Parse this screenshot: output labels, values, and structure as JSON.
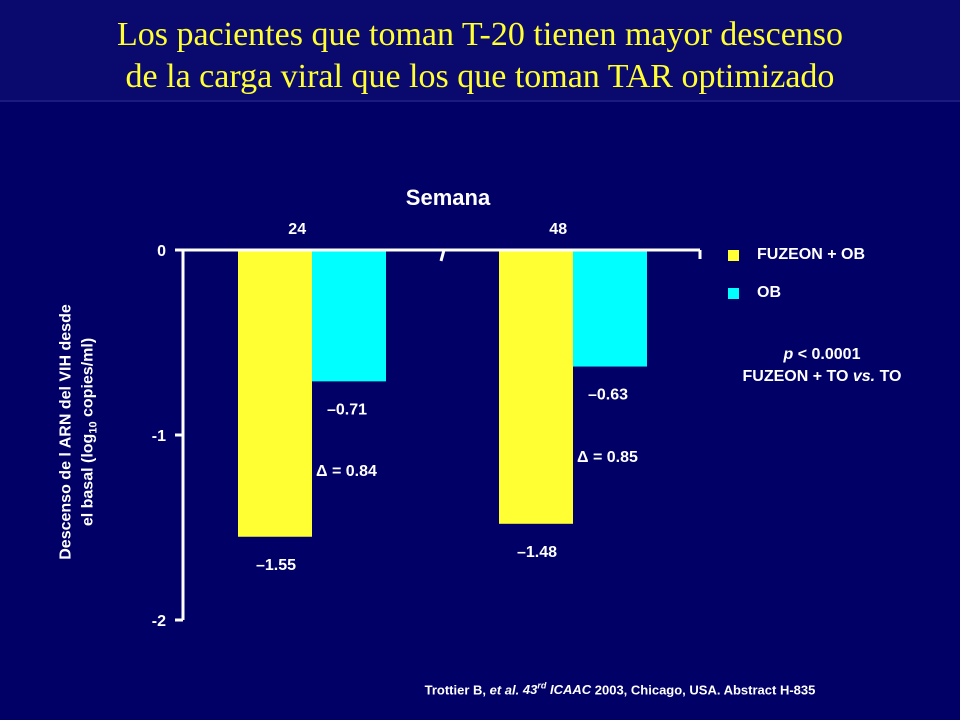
{
  "slide": {
    "title_line1": "Los pacientes que toman T-20 tienen mayor descenso",
    "title_line2": "de la carga viral que los que toman TAR optimizado",
    "p_value": "p < 0.0001",
    "p_comparison": "FUZEON + TO vs. TO",
    "citation": "Trottier B, et al. 43rd ICAAC 2003, Chicago, USA. Abstract H-835",
    "ylabel_line1": "Descenso de l ARN del VIH desde",
    "ylabel_line2": "el basal (log10 copies/ml)",
    "colors": {
      "background": "#000066",
      "title": "#FFFF33",
      "text": "#FFFFFF"
    }
  },
  "chart_data": {
    "type": "bar",
    "title": "Semana",
    "categories": [
      "24",
      "48"
    ],
    "series": [
      {
        "name": "FUZEON + OB",
        "color": "#FFFF33",
        "values": [
          -1.55,
          -1.48
        ],
        "labels": [
          "–1.55",
          "–1.48"
        ]
      },
      {
        "name": "OB",
        "color": "#00FFFF",
        "values": [
          -0.71,
          -0.63
        ],
        "labels": [
          "–0.71",
          "–0.63"
        ]
      }
    ],
    "delta_labels": [
      "Δ = 0.84",
      "Δ = 0.85"
    ],
    "y_ticks": [
      {
        "value": 0,
        "label": "0"
      },
      {
        "value": -1,
        "label": "-1"
      },
      {
        "value": -2,
        "label": "-2"
      }
    ],
    "ylim": [
      -2,
      0
    ],
    "legend_position": "right",
    "grid": false
  }
}
